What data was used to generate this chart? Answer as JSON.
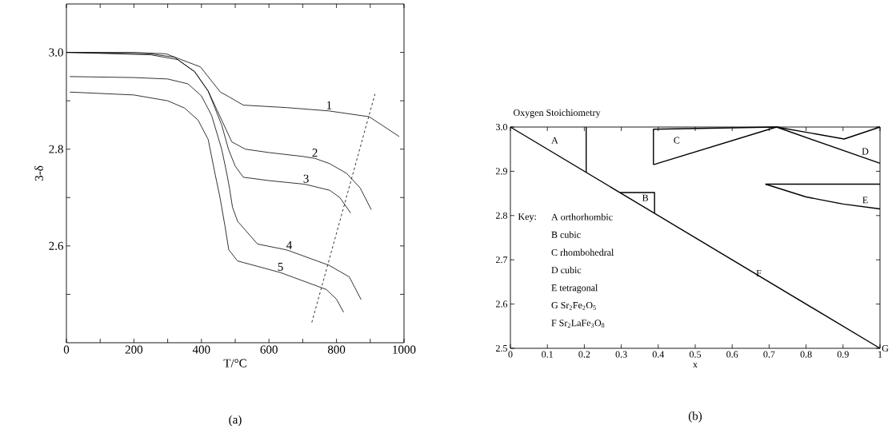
{
  "chart_data": [
    {
      "type": "line",
      "xlabel": "T/°C",
      "ylabel": "3-δ",
      "xlim": [
        0,
        1000
      ],
      "ylim": [
        2.4,
        3.1
      ],
      "xticks": [
        0,
        {
          "value": 100,
          "label": null
        },
        200,
        {
          "value": 300,
          "label": null
        },
        400,
        {
          "value": 500,
          "label": null
        },
        600,
        {
          "value": 700,
          "label": null
        },
        800,
        {
          "value": 900,
          "label": null
        },
        1000
      ],
      "yticks": [
        {
          "value": 2.5,
          "label": null
        },
        {
          "value": 2.6,
          "label": "2.6"
        },
        {
          "value": 2.7,
          "label": null
        },
        {
          "value": 2.8,
          "label": "2.8"
        },
        {
          "value": 2.9,
          "label": null
        },
        {
          "value": 3.0,
          "label": "3.0"
        }
      ],
      "grid": false,
      "marker": "none",
      "line_style": "solid",
      "series": [
        {
          "color": "#000000",
          "x": [
            0,
            200,
            295,
            397,
            456,
            482,
            524,
            650,
            778,
            897,
            986
          ],
          "values": [
            3.0,
            3.0,
            2.997,
            2.97,
            2.918,
            2.908,
            2.891,
            2.886,
            2.879,
            2.867,
            2.826
          ]
        },
        {
          "color": "#000000",
          "x": [
            0,
            250,
            330,
            380,
            420,
            460,
            490,
            530,
            600,
            700,
            736,
            780,
            830,
            870,
            903
          ],
          "values": [
            3.0,
            2.995,
            2.985,
            2.96,
            2.92,
            2.86,
            2.815,
            2.8,
            2.793,
            2.785,
            2.781,
            2.77,
            2.75,
            2.72,
            2.675
          ]
        },
        {
          "color": "#000000",
          "x": [
            0,
            250,
            320,
            380,
            420,
            460,
            480,
            500,
            524,
            600,
            700,
            710,
            780,
            810,
            842
          ],
          "values": [
            3.0,
            2.997,
            2.99,
            2.96,
            2.92,
            2.85,
            2.8,
            2.765,
            2.742,
            2.735,
            2.728,
            2.727,
            2.715,
            2.7,
            2.668
          ]
        },
        {
          "color": "#000000",
          "x": [
            10,
            200,
            300,
            360,
            400,
            430,
            460,
            475,
            483,
            492,
            507,
            566,
            651,
            660,
            778,
            838,
            873
          ],
          "values": [
            2.95,
            2.948,
            2.945,
            2.935,
            2.91,
            2.87,
            2.8,
            2.75,
            2.72,
            2.68,
            2.651,
            2.604,
            2.592,
            2.59,
            2.56,
            2.536,
            2.489
          ]
        },
        {
          "color": "#000000",
          "x": [
            10,
            200,
            300,
            350,
            390,
            420,
            440,
            455,
            470,
            481,
            507,
            634,
            770,
            800,
            821
          ],
          "values": [
            2.918,
            2.912,
            2.9,
            2.885,
            2.86,
            2.82,
            2.75,
            2.7,
            2.64,
            2.592,
            2.569,
            2.545,
            2.51,
            2.49,
            2.463
          ]
        },
        {
          "color": "#000000",
          "line_style": "dashed",
          "x": [
            727,
            914
          ],
          "values": [
            2.442,
            2.914
          ]
        }
      ],
      "annotations": [
        {
          "text": "1",
          "x": 778,
          "y": 2.879
        },
        {
          "text": "2",
          "x": 736,
          "y": 2.781
        },
        {
          "text": "3",
          "x": 710,
          "y": 2.727
        },
        {
          "text": "4",
          "x": 660,
          "y": 2.59
        },
        {
          "text": "5",
          "x": 634,
          "y": 2.545
        },
        "(a)"
      ]
    },
    {
      "type": "line",
      "title": "Oxygen Stoichiometry",
      "xlabel": "x",
      "xlim": [
        0,
        1
      ],
      "ylim": [
        2.5,
        3.0
      ],
      "xticks": [
        0,
        0.1,
        0.2,
        0.3,
        0.4,
        0.5,
        0.6,
        0.7,
        0.8,
        0.9,
        1
      ],
      "yticks": [
        {
          "value": 2.5,
          "label": "2.5"
        },
        {
          "value": 2.6,
          "label": "2.6"
        },
        {
          "value": 2.7,
          "label": "2.7"
        },
        {
          "value": 2.8,
          "label": "2.8"
        },
        {
          "value": 2.9,
          "label": "2.9"
        },
        {
          "value": 3.0,
          "label": "3.0"
        }
      ],
      "grid": false,
      "marker": "none",
      "line_style": "solid",
      "series": [
        {
          "color": "#000000",
          "x": [
            0,
            1
          ],
          "values": [
            3.0,
            2.5
          ]
        },
        {
          "color": "#000000",
          "x": [
            0.205,
            0.205
          ],
          "values": [
            3.0,
            2.897
          ]
        },
        {
          "color": "#000000",
          "x": [
            0.297,
            0.39,
            0.39
          ],
          "values": [
            2.852,
            2.852,
            2.805
          ]
        },
        {
          "color": "#000000",
          "x": [
            0.387,
            0.387,
            0.72,
            0.903,
            1.0
          ],
          "values": [
            2.915,
            2.995,
            3.0,
            2.973,
            3.0
          ]
        },
        {
          "color": "#000000",
          "x": [
            0.387,
            0.72,
            1.0
          ],
          "values": [
            2.915,
            3.0,
            2.918
          ]
        },
        {
          "color": "#000000",
          "x": [
            0.69,
            1.0
          ],
          "values": [
            2.871,
            2.871
          ]
        },
        {
          "color": "#000000",
          "x": [
            0.69,
            0.8,
            0.9,
            1.0
          ],
          "values": [
            2.871,
            2.842,
            2.826,
            2.815
          ]
        }
      ],
      "annotations": [
        {
          "text": "F",
          "x": 0.66,
          "y": 2.67
        },
        {
          "text": "G",
          "x": 1.0,
          "y": 2.5
        },
        "A",
        "B",
        "C",
        "D",
        "E",
        "Key:",
        "A orthorhombic",
        "B cubic",
        "C rhombohedral",
        "D cubic",
        "E tetragonal",
        "G Sr$_{2}$Fe$_{2}$O$_{5}$",
        "F Sr$_{2}$LaFe$_{3}$O$_{8}$",
        "(b)"
      ]
    }
  ]
}
